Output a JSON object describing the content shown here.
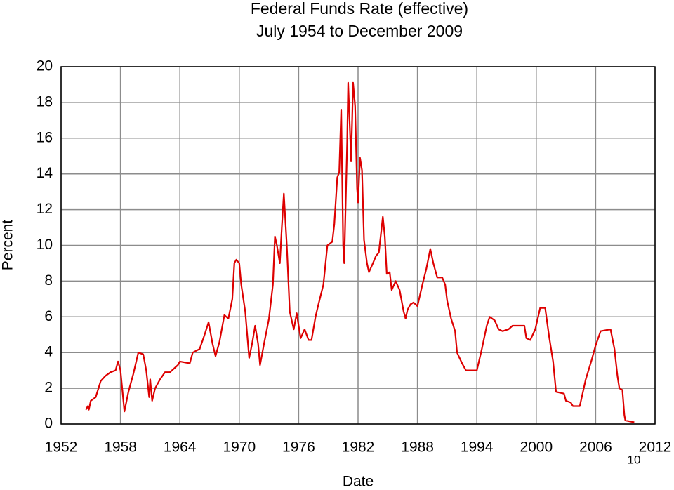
{
  "chart_data": {
    "type": "line",
    "title": "Federal Funds Rate (effective)",
    "subtitle": "July 1954 to December 2009",
    "x_label": "Date",
    "y_label": "Percent",
    "annotations": [
      "10"
    ],
    "xlim": [
      1952,
      2012
    ],
    "xticks": [
      1952,
      1958,
      1964,
      1970,
      1976,
      1982,
      1988,
      1994,
      2000,
      2006,
      2012
    ],
    "ylim": [
      0,
      20
    ],
    "yticks": [
      0,
      2,
      4,
      6,
      8,
      10,
      12,
      14,
      16,
      18,
      20
    ],
    "grid": true,
    "series": [
      {
        "name": "Federal Funds Rate",
        "color": "#dd0000",
        "x": [
          1954.5,
          1954.7,
          1954.8,
          1955.0,
          1955.5,
          1956.0,
          1956.5,
          1957.0,
          1957.5,
          1957.75,
          1958.0,
          1958.4,
          1958.8,
          1959.3,
          1959.8,
          1960.3,
          1960.6,
          1960.9,
          1961.0,
          1961.2,
          1961.5,
          1962.0,
          1962.5,
          1963.0,
          1963.8,
          1964.0,
          1965.0,
          1965.3,
          1966.0,
          1966.5,
          1966.9,
          1967.3,
          1967.6,
          1968.0,
          1968.5,
          1968.9,
          1969.3,
          1969.5,
          1969.7,
          1970.0,
          1970.2,
          1970.6,
          1971.0,
          1971.3,
          1971.6,
          1971.9,
          1972.1,
          1972.5,
          1973.0,
          1973.4,
          1973.6,
          1973.8,
          1974.1,
          1974.3,
          1974.5,
          1974.8,
          1975.1,
          1975.5,
          1975.8,
          1976.2,
          1976.6,
          1977.0,
          1977.3,
          1977.7,
          1978.0,
          1978.5,
          1978.9,
          1979.4,
          1979.6,
          1979.9,
          1980.1,
          1980.3,
          1980.5,
          1980.6,
          1980.9,
          1981.0,
          1981.3,
          1981.5,
          1981.7,
          1981.9,
          1982.0,
          1982.2,
          1982.4,
          1982.6,
          1982.9,
          1983.1,
          1983.5,
          1983.8,
          1984.1,
          1984.5,
          1984.7,
          1984.9,
          1985.2,
          1985.4,
          1985.8,
          1986.2,
          1986.6,
          1986.8,
          1987.0,
          1987.3,
          1987.6,
          1988.0,
          1988.5,
          1988.9,
          1989.3,
          1989.6,
          1990.0,
          1990.5,
          1990.8,
          1991.0,
          1991.4,
          1991.8,
          1992.0,
          1992.5,
          1992.9,
          1993.5,
          1994.0,
          1994.5,
          1995.0,
          1995.3,
          1995.8,
          1996.2,
          1996.6,
          1997.2,
          1997.6,
          1998.4,
          1998.8,
          1999.0,
          1999.4,
          1999.9,
          2000.4,
          2000.9,
          2001.3,
          2001.7,
          2002.0,
          2002.8,
          2003.0,
          2003.5,
          2003.7,
          2004.4,
          2005.0,
          2005.6,
          2006.0,
          2006.5,
          2007.5,
          2007.9,
          2008.2,
          2008.4,
          2008.7,
          2008.9,
          2009.0,
          2009.9
        ],
        "values": [
          0.8,
          1.0,
          0.8,
          1.3,
          1.5,
          2.4,
          2.7,
          2.9,
          3.0,
          3.5,
          3.0,
          0.7,
          1.8,
          2.8,
          4.0,
          3.9,
          3.0,
          1.5,
          2.5,
          1.3,
          2.0,
          2.5,
          2.9,
          2.9,
          3.3,
          3.5,
          3.4,
          4.0,
          4.2,
          5.0,
          5.7,
          4.5,
          3.8,
          4.6,
          6.1,
          5.9,
          7.0,
          9.0,
          9.2,
          9.0,
          7.8,
          6.3,
          3.7,
          4.5,
          5.5,
          4.5,
          3.3,
          4.5,
          5.9,
          7.8,
          10.5,
          10.0,
          9.0,
          11.0,
          12.9,
          10.0,
          6.3,
          5.3,
          6.2,
          4.8,
          5.3,
          4.7,
          4.7,
          6.0,
          6.7,
          7.8,
          10.0,
          10.2,
          11.2,
          13.8,
          14.1,
          17.6,
          10.0,
          9.0,
          15.8,
          19.1,
          14.7,
          19.1,
          17.8,
          13.2,
          12.4,
          14.9,
          14.2,
          10.3,
          9.0,
          8.5,
          9.0,
          9.4,
          9.6,
          11.6,
          10.5,
          8.4,
          8.5,
          7.5,
          8.0,
          7.5,
          6.3,
          5.9,
          6.4,
          6.7,
          6.8,
          6.6,
          7.8,
          8.7,
          9.8,
          9.0,
          8.2,
          8.2,
          7.8,
          6.9,
          5.9,
          5.2,
          4.0,
          3.4,
          3.0,
          3.0,
          3.0,
          4.2,
          5.5,
          6.0,
          5.8,
          5.3,
          5.2,
          5.3,
          5.5,
          5.5,
          5.5,
          4.8,
          4.7,
          5.3,
          6.5,
          6.5,
          4.9,
          3.5,
          1.8,
          1.7,
          1.3,
          1.2,
          1.0,
          1.0,
          2.5,
          3.6,
          4.4,
          5.2,
          5.3,
          4.2,
          2.7,
          2.0,
          1.9,
          0.5,
          0.2,
          0.1
        ]
      }
    ]
  }
}
